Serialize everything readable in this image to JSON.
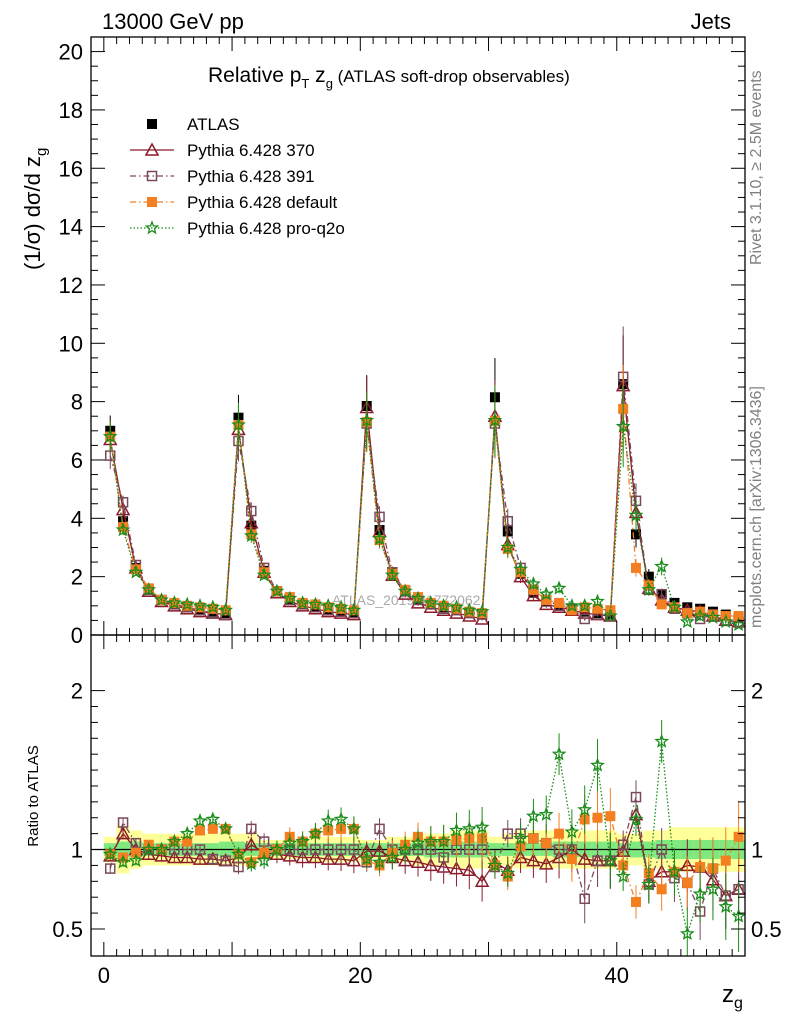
{
  "header": {
    "left": "13000 GeV pp",
    "right": "Jets"
  },
  "side_text": {
    "rivet": "Rivet 3.1.10, ≥ 2.5M events",
    "mcplots": "mcplots.cern.ch [arXiv:1306.3436]"
  },
  "watermark": "ATLAS_2019_I1772062",
  "title": {
    "main": "Relative p",
    "sub_T": "T",
    "mid": " z",
    "sub_g": "g",
    "paren": " (ATLAS soft-drop observables)"
  },
  "ylabel_main": "(1/σ) dσ/d z",
  "ylabel_main_sub": "g",
  "ylabel_ratio": "Ratio to ATLAS",
  "xlabel": "z",
  "xlabel_sub": "g",
  "chart_data": [
    {
      "type": "line",
      "panel": "main",
      "xlim": [
        -1,
        50
      ],
      "ylim": [
        0,
        20.5
      ],
      "xticks": [
        0,
        20,
        40
      ],
      "yticks": [
        0,
        2,
        4,
        6,
        8,
        10,
        12,
        14,
        16,
        18,
        20
      ],
      "legend_position": "top-left",
      "x": [
        0.5,
        1.5,
        2.5,
        3.5,
        4.5,
        5.5,
        6.5,
        7.5,
        8.5,
        9.5,
        10.5,
        11.5,
        12.5,
        13.5,
        14.5,
        15.5,
        16.5,
        17.5,
        18.5,
        19.5,
        20.5,
        21.5,
        22.5,
        23.5,
        24.5,
        25.5,
        26.5,
        27.5,
        28.5,
        29.5,
        30.5,
        31.5,
        32.5,
        33.5,
        34.5,
        35.5,
        36.5,
        37.5,
        38.5,
        39.5,
        40.5,
        41.5,
        42.5,
        43.5,
        44.5,
        45.5,
        46.5,
        47.5,
        48.5,
        49.5
      ],
      "series": [
        {
          "name": "ATLAS",
          "color": "#000000",
          "marker": "square-filled",
          "values": [
            7.0,
            3.9,
            2.3,
            1.55,
            1.2,
            1.05,
            0.95,
            0.85,
            0.8,
            0.75,
            7.45,
            3.75,
            2.2,
            1.5,
            1.2,
            1.05,
            0.95,
            0.85,
            0.8,
            0.75,
            7.85,
            3.6,
            2.15,
            1.5,
            1.2,
            1.05,
            0.95,
            0.85,
            0.75,
            0.7,
            8.15,
            3.55,
            2.1,
            1.45,
            1.15,
            1.0,
            0.9,
            0.8,
            0.75,
            0.7,
            8.6,
            3.45,
            2.0,
            1.4,
            1.1,
            0.95,
            0.9,
            0.8,
            0.7,
            0.6
          ]
        },
        {
          "name": "Pythia 6.428 370",
          "color": "#8b1a2b",
          "marker": "triangle-open",
          "line": "solid",
          "values": [
            6.7,
            4.3,
            2.3,
            1.5,
            1.15,
            1.0,
            0.9,
            0.8,
            0.75,
            0.7,
            7.05,
            3.85,
            2.15,
            1.45,
            1.15,
            1.0,
            0.9,
            0.8,
            0.75,
            0.7,
            7.8,
            3.55,
            2.05,
            1.4,
            1.1,
            0.95,
            0.85,
            0.75,
            0.65,
            0.55,
            7.5,
            3.1,
            2.0,
            1.35,
            1.05,
            0.95,
            0.85,
            0.75,
            0.7,
            0.65,
            8.55,
            4.2,
            1.6,
            1.2,
            0.95,
            0.85,
            0.8,
            0.65,
            0.5,
            0.45
          ]
        },
        {
          "name": "Pythia 6.428 391",
          "color": "#7a4a5a",
          "marker": "square-open",
          "line": "dashdot",
          "values": [
            6.15,
            4.55,
            2.4,
            1.55,
            1.2,
            1.05,
            0.95,
            0.85,
            0.75,
            0.7,
            6.65,
            4.25,
            2.3,
            1.5,
            1.2,
            1.05,
            0.95,
            0.85,
            0.8,
            0.75,
            7.25,
            4.05,
            2.15,
            1.5,
            1.2,
            1.05,
            0.9,
            0.85,
            0.75,
            0.7,
            7.25,
            3.9,
            2.3,
            1.55,
            1.2,
            1.0,
            0.9,
            0.55,
            0.7,
            0.65,
            8.85,
            4.6,
            1.55,
            1.4,
            0.9,
            0.75,
            0.55,
            0.7,
            0.5,
            0.45
          ]
        },
        {
          "name": "Pythia 6.428 default",
          "color": "#f47f20",
          "marker": "square-filled",
          "line": "dashdot",
          "values": [
            6.8,
            3.7,
            2.25,
            1.6,
            1.2,
            1.1,
            1.0,
            0.95,
            0.9,
            0.85,
            7.2,
            3.45,
            2.15,
            1.5,
            1.3,
            1.1,
            1.05,
            0.95,
            0.9,
            0.85,
            7.3,
            3.25,
            2.1,
            1.55,
            1.3,
            1.1,
            1.0,
            0.9,
            0.8,
            0.75,
            7.35,
            2.95,
            2.15,
            1.55,
            1.2,
            1.1,
            0.85,
            0.95,
            0.9,
            0.85,
            7.75,
            2.3,
            1.7,
            1.05,
            0.95,
            0.75,
            0.8,
            0.7,
            0.65,
            0.65
          ]
        },
        {
          "name": "Pythia 6.428 pro-q2o",
          "color": "#1a8c1a",
          "marker": "star",
          "line": "dotted",
          "values": [
            6.8,
            3.6,
            2.15,
            1.55,
            1.2,
            1.1,
            1.05,
            1.0,
            0.95,
            0.85,
            7.2,
            3.4,
            2.05,
            1.5,
            1.25,
            1.1,
            1.05,
            1.0,
            0.95,
            0.85,
            7.35,
            3.3,
            2.05,
            1.5,
            1.25,
            1.1,
            1.0,
            0.95,
            0.85,
            0.8,
            7.35,
            3.0,
            2.25,
            1.75,
            1.4,
            1.6,
            1.0,
            1.0,
            1.15,
            0.65,
            7.15,
            4.1,
            1.55,
            2.35,
            0.95,
            0.45,
            0.65,
            0.6,
            0.45,
            0.35
          ]
        }
      ]
    },
    {
      "type": "line",
      "panel": "ratio",
      "xlim": [
        -1,
        50
      ],
      "ylim": [
        0.33,
        2.35
      ],
      "xticks": [
        0,
        20,
        40
      ],
      "yticks": [
        0.5,
        1,
        2
      ],
      "reference": 1,
      "band_inner_color": "#7fe87f",
      "band_outer_color": "#ffff99",
      "band_inner": [
        0.04,
        0.05,
        0.05,
        0.04,
        0.04,
        0.04,
        0.04,
        0.04,
        0.04,
        0.05,
        0.05,
        0.04,
        0.04,
        0.04,
        0.04,
        0.04,
        0.04,
        0.04,
        0.04,
        0.04,
        0.04,
        0.04,
        0.04,
        0.04,
        0.04,
        0.05,
        0.05,
        0.05,
        0.05,
        0.05,
        0.04,
        0.04,
        0.04,
        0.04,
        0.04,
        0.05,
        0.05,
        0.05,
        0.05,
        0.05,
        0.04,
        0.05,
        0.05,
        0.06,
        0.06,
        0.06,
        0.06,
        0.06,
        0.06,
        0.06
      ],
      "band_outer": [
        0.08,
        0.15,
        0.12,
        0.1,
        0.1,
        0.1,
        0.1,
        0.1,
        0.1,
        0.1,
        0.1,
        0.1,
        0.06,
        0.06,
        0.06,
        0.06,
        0.08,
        0.08,
        0.08,
        0.08,
        0.06,
        0.06,
        0.08,
        0.08,
        0.1,
        0.1,
        0.1,
        0.12,
        0.12,
        0.12,
        0.08,
        0.1,
        0.12,
        0.12,
        0.12,
        0.12,
        0.12,
        0.12,
        0.12,
        0.12,
        0.1,
        0.1,
        0.12,
        0.12,
        0.14,
        0.14,
        0.14,
        0.14,
        0.14,
        0.14
      ],
      "series": [
        {
          "name": "Pythia 6.428 370",
          "color": "#8b1a2b",
          "marker": "triangle-open",
          "line": "solid",
          "values": [
            0.96,
            1.1,
            1.0,
            0.97,
            0.96,
            0.95,
            0.95,
            0.94,
            0.94,
            0.93,
            0.95,
            1.03,
            0.98,
            0.97,
            0.96,
            0.95,
            0.95,
            0.94,
            0.94,
            0.93,
            0.99,
            0.99,
            0.95,
            0.93,
            0.92,
            0.9,
            0.89,
            0.88,
            0.87,
            0.8,
            0.92,
            0.87,
            0.95,
            0.93,
            0.91,
            0.95,
            1.0,
            0.94,
            0.93,
            0.93,
            0.99,
            1.22,
            0.8,
            0.86,
            0.86,
            0.9,
            0.89,
            0.81,
            0.71,
            0.75
          ]
        },
        {
          "name": "Pythia 6.428 391",
          "color": "#7a4a5a",
          "marker": "square-open",
          "line": "dashdot",
          "values": [
            0.88,
            1.17,
            1.04,
            1.0,
            1.0,
            1.0,
            1.0,
            1.0,
            0.94,
            0.93,
            0.89,
            1.13,
            1.05,
            1.0,
            1.0,
            1.0,
            1.0,
            1.0,
            1.0,
            1.0,
            0.92,
            1.13,
            1.0,
            1.0,
            1.0,
            1.0,
            0.95,
            1.0,
            1.0,
            1.0,
            0.89,
            1.1,
            1.1,
            1.07,
            1.04,
            1.0,
            1.0,
            0.69,
            0.93,
            0.93,
            1.03,
            1.33,
            0.78,
            1.0,
            0.82,
            0.79,
            0.61,
            0.88,
            0.71,
            0.75
          ]
        },
        {
          "name": "Pythia 6.428 default",
          "color": "#f47f20",
          "marker": "square-filled",
          "line": "dashdot",
          "values": [
            0.97,
            0.95,
            0.98,
            1.03,
            1.0,
            1.05,
            1.05,
            1.12,
            1.13,
            1.13,
            0.97,
            0.92,
            0.98,
            1.0,
            1.08,
            1.05,
            1.1,
            1.12,
            1.13,
            1.13,
            0.93,
            0.9,
            0.98,
            1.03,
            1.08,
            1.05,
            1.05,
            1.06,
            1.07,
            1.07,
            0.9,
            0.83,
            1.02,
            1.07,
            1.04,
            1.1,
            0.94,
            1.19,
            1.2,
            1.21,
            0.9,
            0.67,
            0.85,
            0.75,
            0.86,
            0.79,
            0.89,
            0.88,
            0.93,
            1.08
          ]
        },
        {
          "name": "Pythia 6.428 pro-q2o",
          "color": "#1a8c1a",
          "marker": "star",
          "line": "dotted",
          "values": [
            0.97,
            0.92,
            0.93,
            1.0,
            1.0,
            1.05,
            1.1,
            1.18,
            1.19,
            1.13,
            0.97,
            0.91,
            0.93,
            1.0,
            1.04,
            1.05,
            1.1,
            1.18,
            1.19,
            1.13,
            0.94,
            0.92,
            0.95,
            1.0,
            1.04,
            1.05,
            1.05,
            1.12,
            1.13,
            1.14,
            0.9,
            0.85,
            1.07,
            1.21,
            1.22,
            1.6,
            1.11,
            1.25,
            1.53,
            0.93,
            0.83,
            1.19,
            0.78,
            1.68,
            0.86,
            0.47,
            0.72,
            0.75,
            0.64,
            0.58
          ]
        }
      ]
    }
  ]
}
